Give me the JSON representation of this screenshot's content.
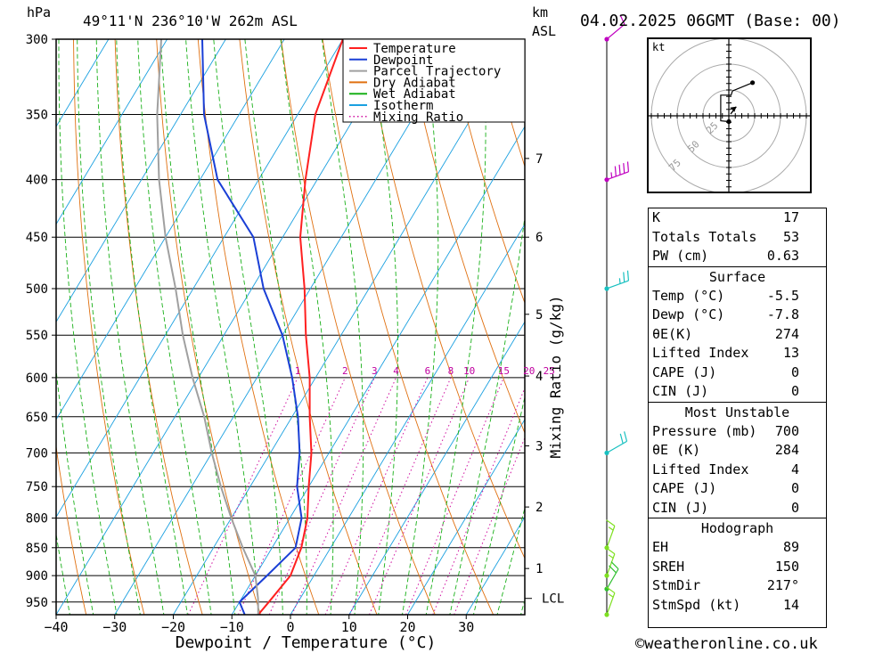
{
  "header": {
    "hpa_label": "hPa",
    "location": "49°11'N  236°10'W  262m  ASL",
    "km_label": "km",
    "asl_label": "ASL",
    "datetime": "04.02.2025  06GMT  (Base: 00)"
  },
  "footer": {
    "copyright": "©weatheronline.co.uk"
  },
  "legend": [
    {
      "name": "Temperature",
      "color": "#ff2020",
      "dash": false
    },
    {
      "name": "Dewpoint",
      "color": "#1a3fd6",
      "dash": false
    },
    {
      "name": "Parcel Trajectory",
      "color": "#a0a0a0",
      "dash": false
    },
    {
      "name": "Dry Adiabat",
      "color": "#e07010",
      "dash": false
    },
    {
      "name": "Wet Adiabat",
      "color": "#18b018",
      "dash": false
    },
    {
      "name": "Isotherm",
      "color": "#1aa0e0",
      "dash": false
    },
    {
      "name": "Mixing Ratio",
      "color": "#d010a0",
      "dash": true
    }
  ],
  "hodograph": {
    "unit": "kt",
    "ring_labels": [
      "25",
      "50",
      "75"
    ]
  },
  "indices": {
    "general": [
      {
        "label": "K",
        "value": "17"
      },
      {
        "label": "Totals Totals",
        "value": "53"
      },
      {
        "label": "PW (cm)",
        "value": "0.63"
      }
    ],
    "surface": {
      "title": "Surface",
      "rows": [
        {
          "label": "Temp (°C)",
          "value": "-5.5"
        },
        {
          "label": "Dewp (°C)",
          "value": "-7.8"
        },
        {
          "label": "θE(K)",
          "value": "274"
        },
        {
          "label": "Lifted Index",
          "value": "13"
        },
        {
          "label": "CAPE (J)",
          "value": "0"
        },
        {
          "label": "CIN (J)",
          "value": "0"
        }
      ]
    },
    "most_unstable": {
      "title": "Most Unstable",
      "rows": [
        {
          "label": "Pressure (mb)",
          "value": "700"
        },
        {
          "label": "θE (K)",
          "value": "284"
        },
        {
          "label": "Lifted Index",
          "value": "4"
        },
        {
          "label": "CAPE (J)",
          "value": "0"
        },
        {
          "label": "CIN (J)",
          "value": "0"
        }
      ]
    },
    "hodograph": {
      "title": "Hodograph",
      "rows": [
        {
          "label": "EH",
          "value": "89"
        },
        {
          "label": "SREH",
          "value": "150"
        },
        {
          "label": "StmDir",
          "value": "217°"
        },
        {
          "label": "StmSpd (kt)",
          "value": "14"
        }
      ]
    }
  },
  "chart_data": {
    "type": "line",
    "title": "",
    "xlabel": "Dewpoint / Temperature (°C)",
    "ylabel": "hPa",
    "right_axis_label": "Mixing Ratio (g/kg)",
    "xlim": [
      -40,
      40
    ],
    "ylim": [
      975,
      300
    ],
    "y_scale": "log",
    "x_ticks": [
      -40,
      -30,
      -20,
      -10,
      0,
      10,
      20,
      30
    ],
    "x_tick_labels": [
      "−40",
      "−30",
      "−20",
      "−10",
      "0",
      "10",
      "20",
      "30"
    ],
    "pressure_levels": [
      300,
      350,
      400,
      450,
      500,
      550,
      600,
      650,
      700,
      750,
      800,
      850,
      900,
      950
    ],
    "km_ticks": [
      {
        "km": 7,
        "p": 383
      },
      {
        "km": 6,
        "p": 450
      },
      {
        "km": 5,
        "p": 527
      },
      {
        "km": 4,
        "p": 598
      },
      {
        "km": 3,
        "p": 690
      },
      {
        "km": 2,
        "p": 782
      },
      {
        "km": 1,
        "p": 887
      }
    ],
    "lcl": {
      "label": "LCL",
      "p": 943
    },
    "mixing_ratio_labels": [
      "1",
      "2",
      "3",
      "4",
      "6",
      "8",
      "10",
      "15",
      "20",
      "25"
    ],
    "mixing_ratio_values": [
      1,
      2,
      3,
      4,
      6,
      8,
      10,
      15,
      20,
      25
    ],
    "mixing_ratio_label_p": 600,
    "series": [
      {
        "name": "Temperature",
        "color": "#ff2020",
        "points": [
          [
            -5.5,
            975
          ],
          [
            -5,
            950
          ],
          [
            -4,
            900
          ],
          [
            -5,
            850
          ],
          [
            -7,
            800
          ],
          [
            -10,
            750
          ],
          [
            -13,
            700
          ],
          [
            -17,
            650
          ],
          [
            -21,
            600
          ],
          [
            -26,
            550
          ],
          [
            -31,
            500
          ],
          [
            -37,
            450
          ],
          [
            -42,
            400
          ],
          [
            -47,
            350
          ],
          [
            -50,
            300
          ]
        ]
      },
      {
        "name": "Dewpoint",
        "color": "#1a3fd6",
        "points": [
          [
            -7.8,
            975
          ],
          [
            -10,
            950
          ],
          [
            -8,
            900
          ],
          [
            -6,
            850
          ],
          [
            -8,
            800
          ],
          [
            -12,
            750
          ],
          [
            -15,
            700
          ],
          [
            -19,
            650
          ],
          [
            -24,
            600
          ],
          [
            -30,
            550
          ],
          [
            -38,
            500
          ],
          [
            -45,
            450
          ],
          [
            -57,
            400
          ],
          [
            -66,
            350
          ],
          [
            -74,
            300
          ]
        ]
      },
      {
        "name": "Parcel Trajectory",
        "color": "#a0a0a0",
        "points": [
          [
            -5.5,
            975
          ],
          [
            -7.2,
            943
          ],
          [
            -10,
            900
          ],
          [
            -15,
            850
          ],
          [
            -20,
            800
          ],
          [
            -25,
            750
          ],
          [
            -30,
            700
          ],
          [
            -35,
            650
          ],
          [
            -41,
            600
          ],
          [
            -47,
            550
          ],
          [
            -53,
            500
          ],
          [
            -60,
            450
          ],
          [
            -67,
            400
          ],
          [
            -74,
            350
          ],
          [
            -81,
            300
          ]
        ]
      }
    ],
    "wind_barbs": [
      {
        "p": 300,
        "dir": 230,
        "spd": 10,
        "color": "#c000c0"
      },
      {
        "p": 400,
        "dir": 250,
        "spd": 45,
        "color": "#c000c0"
      },
      {
        "p": 500,
        "dir": 250,
        "spd": 25,
        "color": "#18c0c0"
      },
      {
        "p": 700,
        "dir": 240,
        "spd": 20,
        "color": "#18c0c0"
      },
      {
        "p": 850,
        "dir": 200,
        "spd": 15,
        "color": "#7ee020"
      },
      {
        "p": 900,
        "dir": 200,
        "spd": 15,
        "color": "#7ee020"
      },
      {
        "p": 925,
        "dir": 210,
        "spd": 20,
        "color": "#30c030"
      },
      {
        "p": 975,
        "dir": 200,
        "spd": 15,
        "color": "#7ee020"
      }
    ],
    "hodograph_path": [
      [
        0,
        -7
      ],
      [
        -11,
        -6
      ],
      [
        -11,
        25
      ],
      [
        3,
        25
      ],
      [
        5,
        30
      ],
      [
        32,
        40
      ]
    ],
    "storm_motion": {
      "u": 10,
      "v": 11
    }
  }
}
